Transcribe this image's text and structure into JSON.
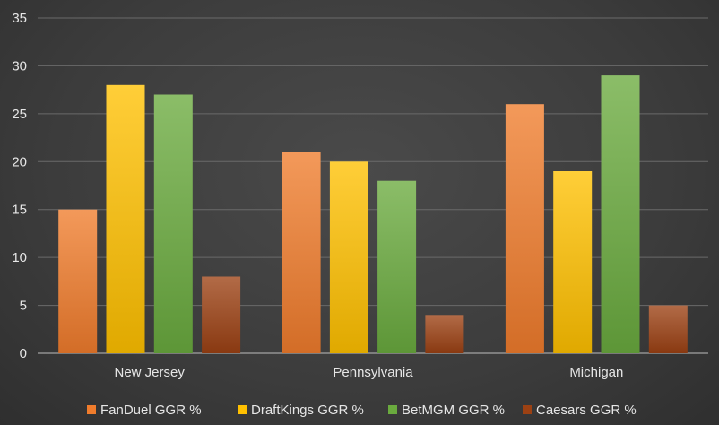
{
  "chart_data": {
    "type": "bar",
    "categories": [
      "New Jersey",
      "Pennsylvania",
      "Michigan"
    ],
    "series": [
      {
        "name": "FanDuel GGR %",
        "values": [
          15,
          21,
          26
        ],
        "color": "#f07c2c"
      },
      {
        "name": "DraftKings GGR %",
        "values": [
          28,
          20,
          19
        ],
        "color": "#ffc000"
      },
      {
        "name": "BetMGM GGR %",
        "values": [
          27,
          18,
          29
        ],
        "color": "#6aaa3e"
      },
      {
        "name": "Caesars GGR %",
        "values": [
          8,
          4,
          5
        ],
        "color": "#9c4113"
      }
    ],
    "yticks": [
      0,
      5,
      10,
      15,
      20,
      25,
      30,
      35
    ],
    "ylim": [
      0,
      35
    ],
    "grid": true,
    "legend": "bottom"
  }
}
